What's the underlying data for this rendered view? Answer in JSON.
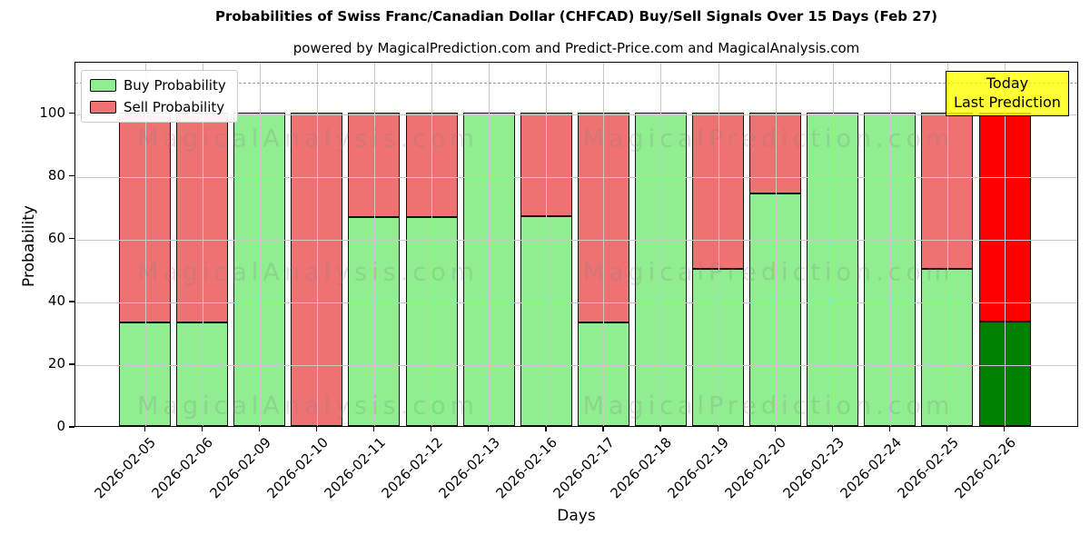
{
  "title": "Probabilities of Swiss Franc/Canadian Dollar (CHFCAD) Buy/Sell Signals Over 15 Days (Feb 27)",
  "subtitle": "powered by MagicalPrediction.com and Predict-Price.com and MagicalAnalysis.com",
  "legend": {
    "buy_label": "Buy Probability",
    "sell_label": "Sell Probability"
  },
  "annotation": {
    "line1": "Today",
    "line2": "Last Prediction"
  },
  "axes": {
    "xlabel": "Days",
    "ylabel": "Probability",
    "yticks": [
      0,
      20,
      40,
      60,
      80,
      100
    ]
  },
  "watermarks": [
    "MagicalAnalysis.com",
    "MagicalPrediction.com"
  ],
  "colors": {
    "buy": "#90ee90",
    "sell": "#ee7272",
    "today_buy": "#008000",
    "today_sell": "#ff0000",
    "annotation_bg": "#ffff00",
    "watermark": "#808080",
    "grid": "#c9c9c9",
    "dashed_line": "#9a9a9a"
  },
  "chart_data": {
    "type": "bar",
    "stacked": true,
    "title": "Probabilities of Swiss Franc/Canadian Dollar (CHFCAD) Buy/Sell Signals Over 15 Days (Feb 27)",
    "xlabel": "Days",
    "ylabel": "Probability",
    "categories": [
      "2026-02-05",
      "2026-02-06",
      "2026-02-09",
      "2026-02-10",
      "2026-02-11",
      "2026-02-12",
      "2026-02-13",
      "2026-02-16",
      "2026-02-17",
      "2026-02-18",
      "2026-02-19",
      "2026-02-20",
      "2026-02-23",
      "2026-02-24",
      "2026-02-25",
      "2026-02-26"
    ],
    "series": [
      {
        "name": "Buy Probability",
        "values": [
          33,
          33,
          100,
          0,
          66.5,
          66.5,
          100,
          67,
          33,
          100,
          50,
          74,
          100,
          100,
          50,
          33.33
        ]
      },
      {
        "name": "Sell Probability",
        "values": [
          67,
          67,
          0,
          100,
          33.5,
          33.5,
          0,
          33,
          67,
          0,
          50,
          26,
          0,
          0,
          50,
          66.67
        ]
      }
    ],
    "today_index": 15,
    "ylim": [
      0,
      116.4
    ],
    "dashed_line_y": 110,
    "grid": true,
    "legend_position": "upper left"
  }
}
